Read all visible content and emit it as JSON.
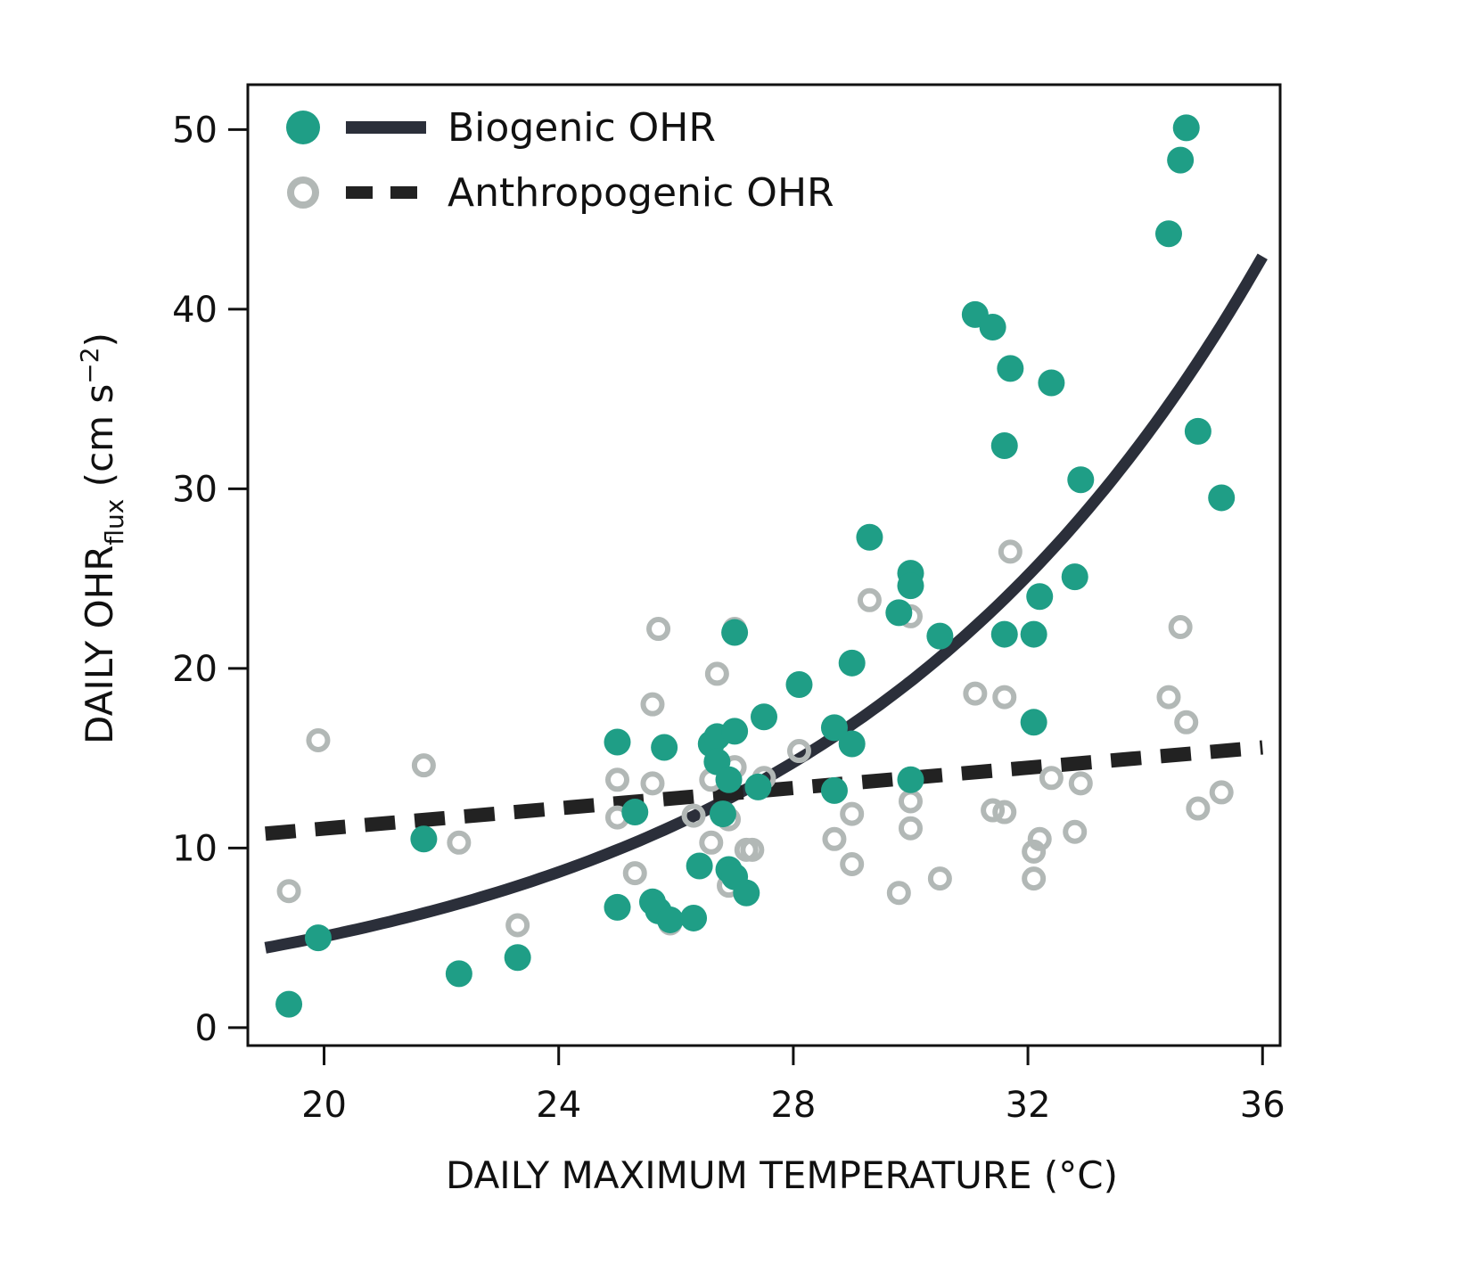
{
  "chart_data": {
    "type": "scatter",
    "xlabel": "DAILY MAXIMUM TEMPERATURE (°C)",
    "ylabel": {
      "prefix": "DAILY OHR",
      "subscript": "flux",
      "unit_open": " (cm s",
      "superscript": "−2",
      "unit_close": ")"
    },
    "xlim": [
      18.7,
      36.3
    ],
    "ylim": [
      -1,
      52.5
    ],
    "x_ticks": [
      20,
      24,
      28,
      32,
      36
    ],
    "y_ticks": [
      0,
      10,
      20,
      30,
      40,
      50
    ],
    "x_tick_labels": [
      "20",
      "24",
      "28",
      "32",
      "36"
    ],
    "y_tick_labels": [
      "0",
      "10",
      "20",
      "30",
      "40",
      "50"
    ],
    "grid": false,
    "legend_position": "top-left",
    "legend": [
      {
        "label": "Biogenic OHR"
      },
      {
        "label": "Anthropogenic OHR"
      }
    ],
    "colors": {
      "biogenic": "#1f9e86",
      "anthropogenic": "#b2b8b6",
      "biogenic_fit": "#2b2f3a",
      "anthropogenic_fit": "#222222",
      "axis": "#111111"
    },
    "series": [
      {
        "key": "biogenic",
        "marker": "filled-circle",
        "points": [
          [
            19.4,
            1.3
          ],
          [
            19.9,
            5.0
          ],
          [
            21.7,
            10.5
          ],
          [
            22.3,
            3.0
          ],
          [
            23.3,
            3.9
          ],
          [
            25.0,
            15.9
          ],
          [
            25.0,
            6.7
          ],
          [
            25.3,
            12.0
          ],
          [
            25.6,
            7.0
          ],
          [
            25.7,
            6.5
          ],
          [
            25.8,
            15.6
          ],
          [
            25.9,
            6.0
          ],
          [
            26.3,
            6.1
          ],
          [
            26.4,
            9.0
          ],
          [
            26.6,
            15.8
          ],
          [
            26.7,
            16.2
          ],
          [
            26.7,
            14.8
          ],
          [
            26.8,
            11.9
          ],
          [
            26.9,
            8.8
          ],
          [
            26.9,
            13.8
          ],
          [
            27.0,
            16.5
          ],
          [
            27.0,
            8.4
          ],
          [
            27.0,
            22.0
          ],
          [
            27.2,
            7.5
          ],
          [
            27.4,
            13.4
          ],
          [
            27.5,
            17.3
          ],
          [
            28.1,
            19.1
          ],
          [
            28.7,
            16.7
          ],
          [
            28.7,
            13.2
          ],
          [
            29.0,
            20.3
          ],
          [
            29.0,
            15.8
          ],
          [
            29.3,
            27.3
          ],
          [
            29.8,
            23.1
          ],
          [
            30.0,
            25.3
          ],
          [
            30.0,
            24.6
          ],
          [
            30.0,
            13.8
          ],
          [
            30.5,
            21.8
          ],
          [
            31.1,
            39.7
          ],
          [
            31.4,
            39.0
          ],
          [
            31.6,
            21.9
          ],
          [
            31.6,
            32.4
          ],
          [
            31.7,
            36.7
          ],
          [
            32.1,
            21.9
          ],
          [
            32.1,
            17.0
          ],
          [
            32.2,
            24.0
          ],
          [
            32.4,
            35.9
          ],
          [
            32.8,
            25.1
          ],
          [
            32.9,
            30.5
          ],
          [
            34.4,
            44.2
          ],
          [
            34.6,
            48.3
          ],
          [
            34.7,
            50.1
          ],
          [
            34.9,
            33.2
          ],
          [
            35.3,
            29.5
          ]
        ]
      },
      {
        "key": "anthropogenic",
        "marker": "open-circle",
        "points": [
          [
            19.4,
            7.6
          ],
          [
            19.9,
            16.0
          ],
          [
            21.7,
            14.6
          ],
          [
            22.3,
            10.3
          ],
          [
            23.3,
            5.7
          ],
          [
            25.0,
            13.8
          ],
          [
            25.0,
            11.7
          ],
          [
            25.3,
            8.6
          ],
          [
            25.6,
            13.6
          ],
          [
            25.6,
            18.0
          ],
          [
            25.7,
            22.2
          ],
          [
            25.9,
            5.8
          ],
          [
            26.3,
            11.8
          ],
          [
            26.6,
            13.8
          ],
          [
            26.6,
            10.3
          ],
          [
            26.7,
            19.7
          ],
          [
            26.9,
            7.9
          ],
          [
            26.9,
            11.6
          ],
          [
            27.0,
            14.5
          ],
          [
            27.0,
            22.2
          ],
          [
            27.2,
            9.9
          ],
          [
            27.3,
            9.9
          ],
          [
            27.5,
            13.9
          ],
          [
            28.1,
            15.4
          ],
          [
            28.7,
            10.5
          ],
          [
            28.7,
            13.2
          ],
          [
            29.0,
            9.1
          ],
          [
            29.0,
            11.9
          ],
          [
            29.3,
            23.8
          ],
          [
            29.8,
            7.5
          ],
          [
            30.0,
            12.6
          ],
          [
            30.0,
            11.1
          ],
          [
            30.0,
            22.9
          ],
          [
            30.5,
            8.3
          ],
          [
            31.1,
            18.6
          ],
          [
            31.4,
            12.1
          ],
          [
            31.6,
            12.0
          ],
          [
            31.6,
            18.4
          ],
          [
            31.7,
            26.5
          ],
          [
            32.1,
            9.8
          ],
          [
            32.1,
            8.3
          ],
          [
            32.2,
            10.5
          ],
          [
            32.4,
            13.9
          ],
          [
            32.8,
            10.9
          ],
          [
            32.9,
            13.6
          ],
          [
            34.4,
            18.4
          ],
          [
            34.6,
            22.3
          ],
          [
            34.7,
            17.0
          ],
          [
            34.9,
            12.2
          ],
          [
            35.3,
            13.1
          ]
        ]
      }
    ],
    "fits": [
      {
        "key": "biogenic_fit",
        "style": "solid",
        "equation": "exponential",
        "a": 5.08,
        "b": 0.1334,
        "x0": 20,
        "x_range": [
          19.0,
          36.0
        ]
      },
      {
        "key": "anthropogenic_fit",
        "style": "dashed",
        "equation": "linear",
        "x_range": [
          19.0,
          36.0
        ],
        "y_range": [
          10.8,
          15.6
        ]
      }
    ]
  }
}
